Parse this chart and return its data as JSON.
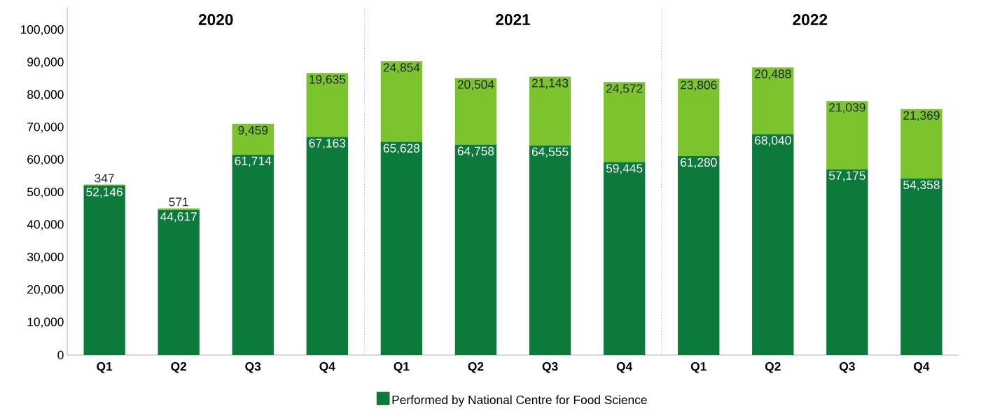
{
  "chart_data": {
    "type": "bar",
    "stacked": true,
    "categories": [
      "Q1",
      "Q2",
      "Q3",
      "Q4",
      "Q1",
      "Q2",
      "Q3",
      "Q4",
      "Q1",
      "Q2",
      "Q3",
      "Q4"
    ],
    "series": [
      {
        "name": "Performed by National Centre for Food Science",
        "color": "#0b7a3b",
        "values": [
          52146,
          44617,
          61714,
          67163,
          65628,
          64758,
          64555,
          59445,
          61280,
          68040,
          57175,
          54358
        ],
        "value_labels": [
          "52,146",
          "44,617",
          "61,714",
          "67,163",
          "65,628",
          "64,758",
          "64,555",
          "59,445",
          "61,280",
          "68,040",
          "57,175",
          "54,358"
        ]
      },
      {
        "color": "#7cc42e",
        "values": [
          347,
          571,
          9459,
          19635,
          24854,
          20504,
          21143,
          24572,
          23806,
          20488,
          21039,
          21369
        ],
        "value_labels": [
          "347",
          "571",
          "9,459",
          "19,635",
          "24,854",
          "20,504",
          "21,143",
          "24,572",
          "23,806",
          "20,488",
          "21,039",
          "21,369"
        ]
      }
    ],
    "ylim": [
      0,
      107000
    ],
    "yticks": [
      0,
      {
        "value": 10000,
        "label": "10,000"
      },
      {
        "value": 20000,
        "label": "20,000"
      },
      {
        "value": 30000,
        "label": "30,000"
      },
      {
        "value": 40000,
        "label": "40,000"
      },
      {
        "value": 50000,
        "label": "50,000"
      },
      {
        "value": 60000,
        "label": "60,000"
      },
      {
        "value": 70000,
        "label": "70,000"
      },
      {
        "value": 80000,
        "label": "80,000"
      },
      {
        "value": 90000,
        "label": "90,000"
      },
      {
        "value": 100000,
        "label": "100,000"
      }
    ],
    "annotations": [
      "2020",
      "2021",
      "2022"
    ],
    "legend": "bottom"
  }
}
